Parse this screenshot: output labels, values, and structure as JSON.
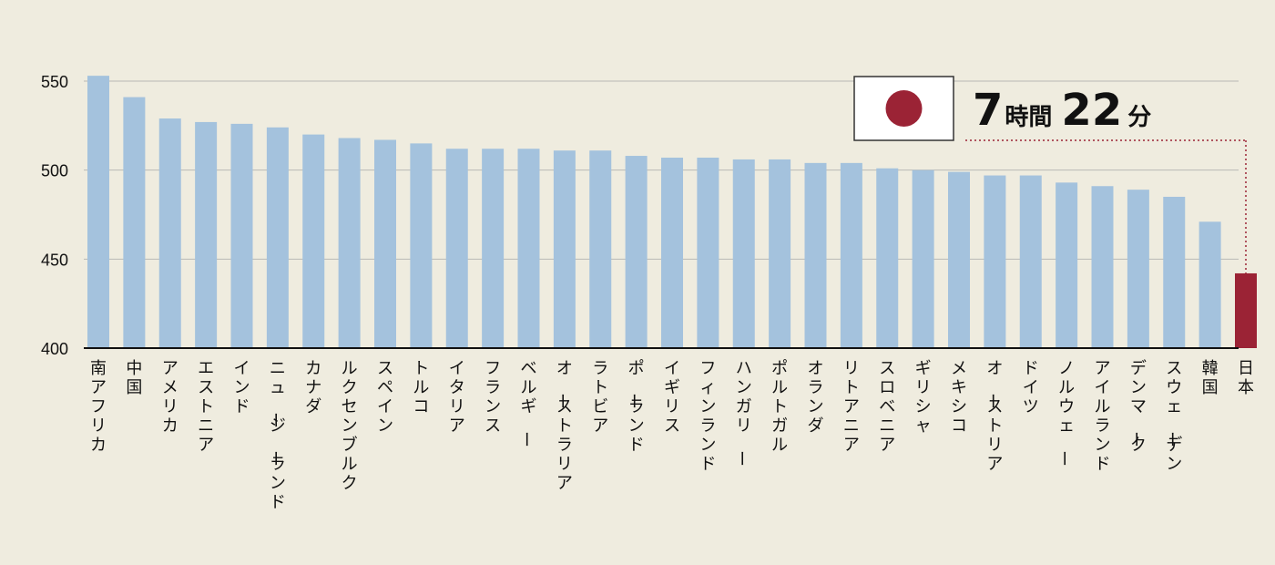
{
  "chart_data": {
    "type": "bar",
    "title": "",
    "xlabel": "",
    "ylabel": "",
    "ylim": [
      400,
      560
    ],
    "yticks": [
      400,
      450,
      500,
      550
    ],
    "grid": true,
    "categories": [
      "南アフリカ",
      "中国",
      "アメリカ",
      "エストニア",
      "インド",
      "ニュージーランド",
      "カナダ",
      "ルクセンブルク",
      "スペイン",
      "トルコ",
      "イタリア",
      "フランス",
      "ベルギー",
      "オーストラリア",
      "ラトビア",
      "ポーランド",
      "イギリス",
      "フィンランド",
      "ハンガリー",
      "ポルトガル",
      "オランダ",
      "リトアニア",
      "スロベニア",
      "ギリシャ",
      "メキシコ",
      "オーストリア",
      "ドイツ",
      "ノルウェー",
      "アイルランド",
      "デンマーク",
      "スウェーデン",
      "韓国",
      "日本"
    ],
    "values": [
      553,
      541,
      529,
      527,
      526,
      524,
      520,
      518,
      517,
      515,
      512,
      512,
      512,
      511,
      511,
      508,
      507,
      507,
      506,
      506,
      504,
      504,
      501,
      500,
      499,
      497,
      497,
      493,
      491,
      489,
      485,
      471,
      442
    ],
    "highlight_index": 32,
    "colors": {
      "bar": "#a4c2dd",
      "highlight": "#9b2335",
      "grid": "#b9b9b4",
      "axis": "#111111",
      "flag_sun": "#9b2335"
    },
    "annotation": {
      "flag_icon": "japan-flag-icon",
      "number1": "7",
      "unit1": "時間",
      "number2": "22",
      "unit2": "分"
    }
  }
}
